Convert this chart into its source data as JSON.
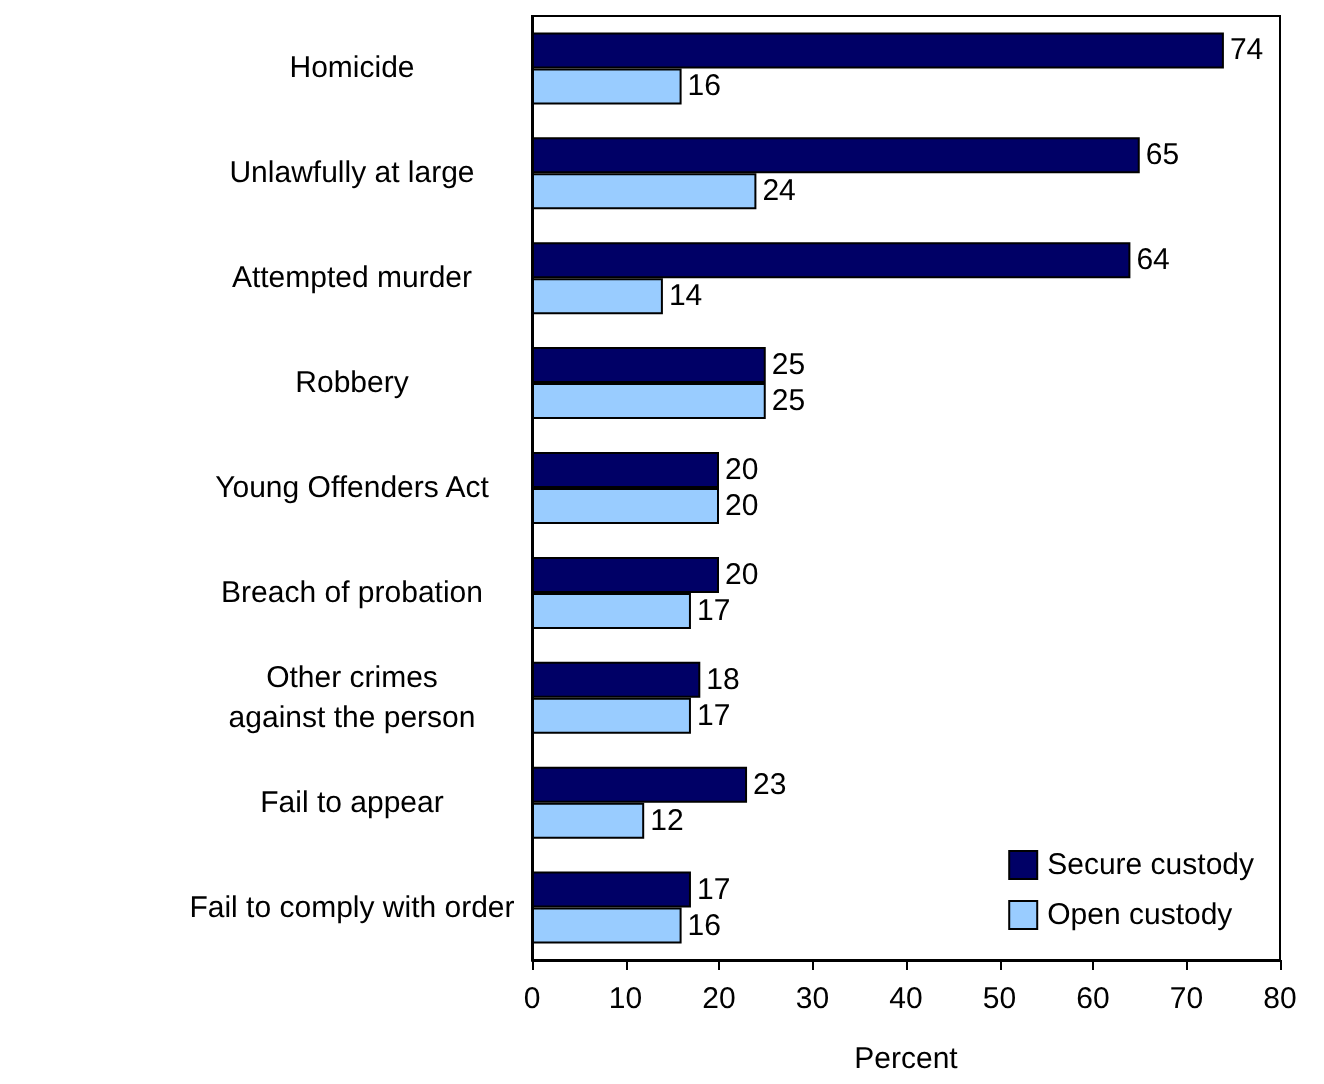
{
  "chart_data": {
    "type": "bar",
    "orientation": "horizontal",
    "xlabel": "Percent",
    "categories": [
      "Homicide",
      "Unlawfully at large",
      "Attempted murder",
      "Robbery",
      "Young Offenders Act",
      "Breach of probation",
      "Other crimes\nagainst the person",
      "Fail to appear",
      "Fail to comply with order"
    ],
    "series": [
      {
        "name": "Secure custody",
        "color": "#000066",
        "values": [
          74,
          65,
          64,
          25,
          20,
          20,
          18,
          23,
          17
        ]
      },
      {
        "name": "Open custody",
        "color": "#99ccff",
        "values": [
          16,
          24,
          14,
          25,
          20,
          17,
          17,
          12,
          16
        ]
      }
    ],
    "xlim": [
      0,
      80
    ],
    "xticks": [
      0,
      10,
      20,
      30,
      40,
      50,
      60,
      70,
      80
    ],
    "grid": false,
    "legend": "bottom right",
    "data_labels": true
  }
}
